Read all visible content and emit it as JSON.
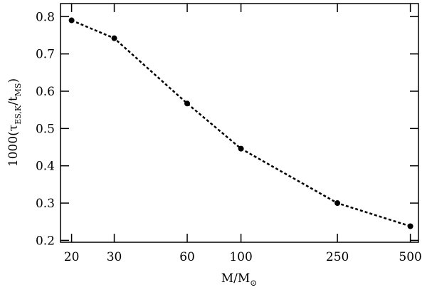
{
  "chart_data": {
    "type": "line",
    "xlabel_parts": [
      "M/M",
      "⊙"
    ],
    "ylabel_parts": [
      "1000(τ",
      "ES,K",
      "/t",
      "MS",
      ")"
    ],
    "x": [
      20,
      30,
      60,
      100,
      250,
      500
    ],
    "series": [
      {
        "color": "#000000",
        "values": [
          0.79,
          0.742,
          0.567,
          0.446,
          0.3,
          0.238
        ]
      }
    ],
    "xscale": "log",
    "xlim": [
      18,
      540
    ],
    "ylim": [
      0.195,
      0.835
    ],
    "xticks": [
      20,
      30,
      60,
      100,
      250,
      500
    ],
    "yticks": [
      0.2,
      0.3,
      0.4,
      0.5,
      0.6,
      0.7,
      0.8
    ],
    "linestyle": "dotted"
  }
}
